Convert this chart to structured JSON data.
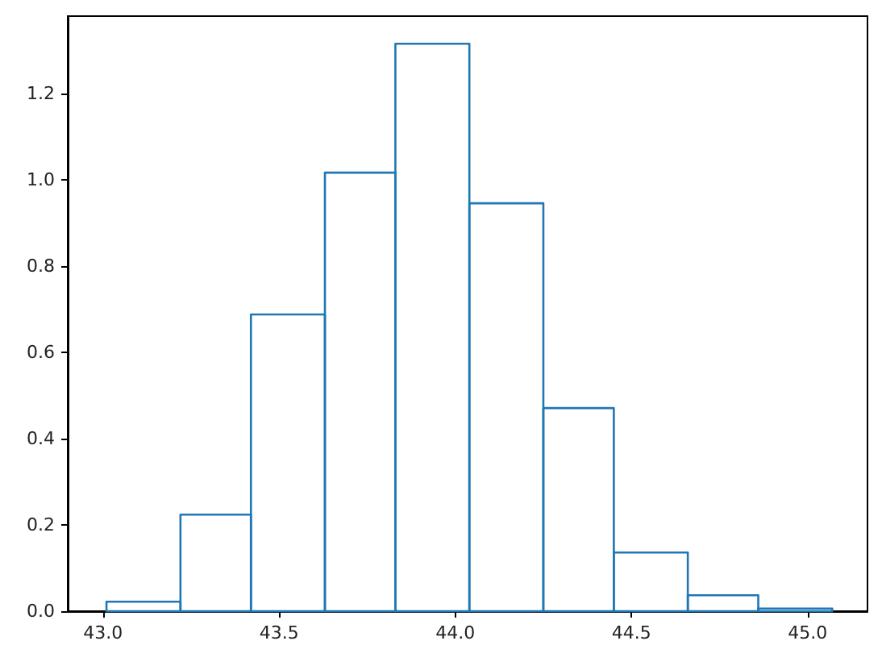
{
  "chart_data": {
    "type": "histogram",
    "bins": [
      43.01,
      43.22,
      43.42,
      43.63,
      43.83,
      44.04,
      44.25,
      44.45,
      44.66,
      44.86,
      45.07
    ],
    "values": [
      0.022,
      0.224,
      0.688,
      1.017,
      1.316,
      0.946,
      0.471,
      0.136,
      0.037,
      0.006
    ],
    "color": "#1f77b4",
    "xlim": [
      42.9,
      45.17
    ],
    "xticks": [
      {
        "value": 43,
        "label": "43.0"
      },
      {
        "value": 43.5,
        "label": "43.5"
      },
      {
        "value": 44,
        "label": "44.0"
      },
      {
        "value": 44.5,
        "label": "44.5"
      },
      {
        "value": 45,
        "label": "45.0"
      }
    ],
    "ylim": [
      0,
      1.38
    ],
    "yticks": [
      {
        "value": 0,
        "label": "0.0"
      },
      {
        "value": 0.2,
        "label": "0.2"
      },
      {
        "value": 0.4,
        "label": "0.4"
      },
      {
        "value": 0.6,
        "label": "0.6"
      },
      {
        "value": 0.8,
        "label": "0.8"
      },
      {
        "value": 1,
        "label": "1.0"
      },
      {
        "value": 1.2,
        "label": "1.2"
      }
    ],
    "grid": false
  }
}
